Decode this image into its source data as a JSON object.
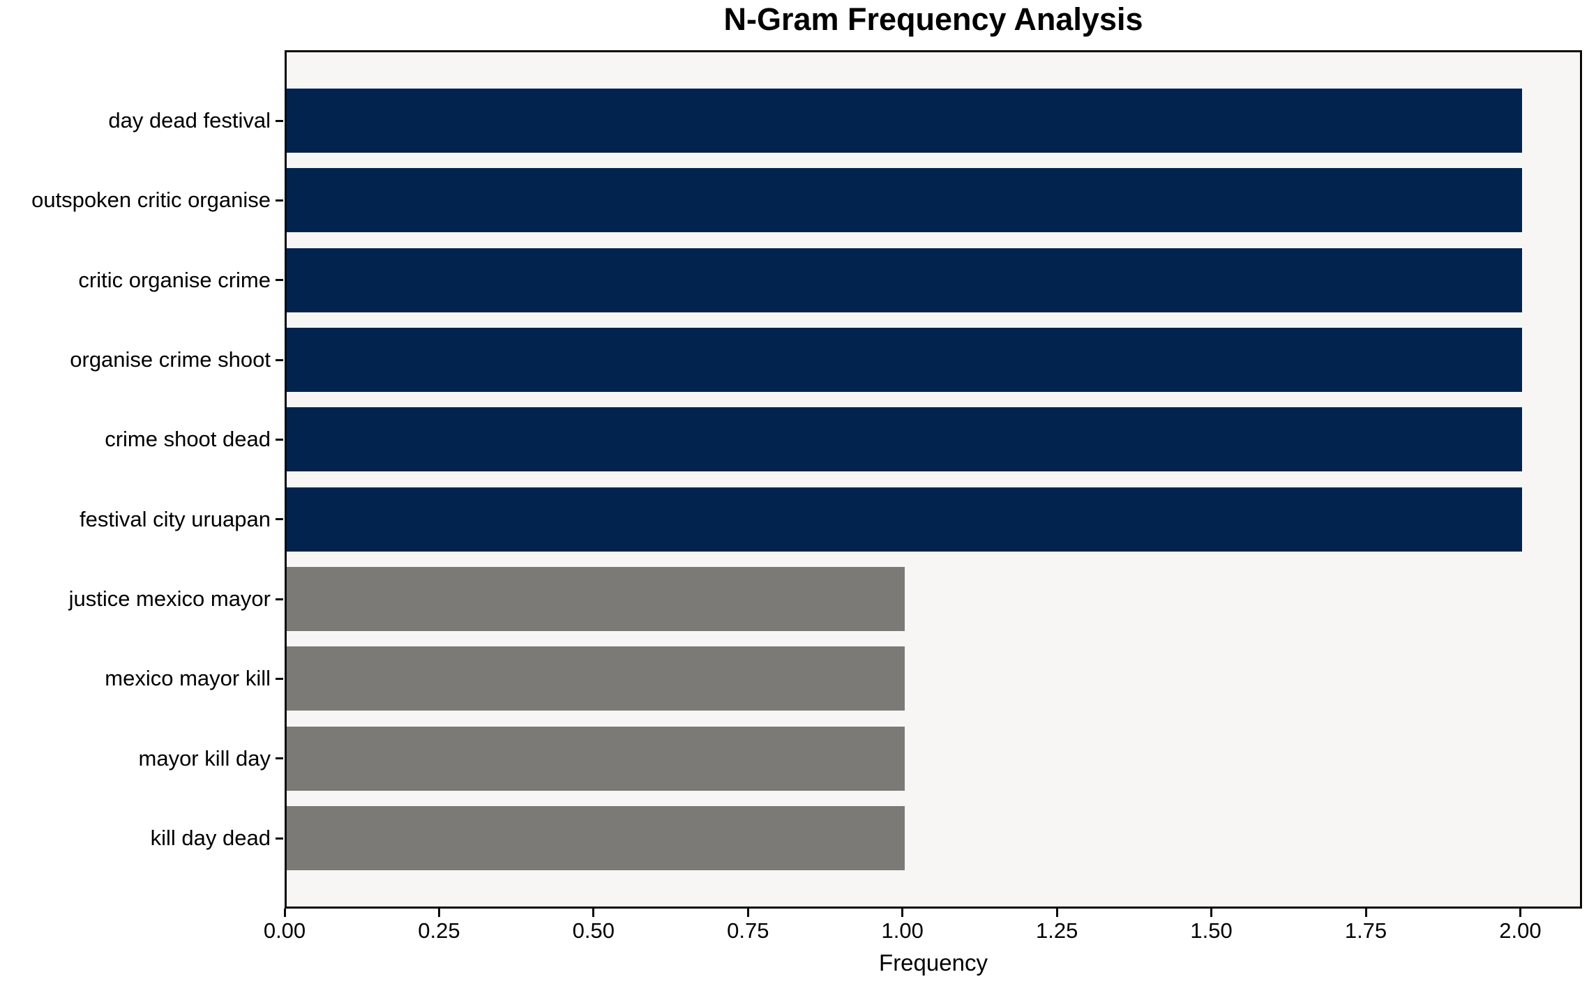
{
  "chart_data": {
    "type": "bar",
    "orientation": "horizontal",
    "title": "N-Gram Frequency Analysis",
    "xlabel": "Frequency",
    "ylabel": "",
    "categories": [
      "day dead festival",
      "outspoken critic organise",
      "critic organise crime",
      "organise crime shoot",
      "crime shoot dead",
      "festival city uruapan",
      "justice mexico mayor",
      "mexico mayor kill",
      "mayor kill day",
      "kill day dead"
    ],
    "values": [
      2,
      2,
      2,
      2,
      2,
      2,
      1,
      1,
      1,
      1
    ],
    "bar_colors": [
      "#02234d",
      "#02234d",
      "#02234d",
      "#02234d",
      "#02234d",
      "#02234d",
      "#7b7a77",
      "#7b7a77",
      "#7b7a77",
      "#7b7a77"
    ],
    "xlim": [
      0,
      2.1
    ],
    "xticks": [
      0,
      0.25,
      0.5,
      0.75,
      1.0,
      1.25,
      1.5,
      1.75,
      2.0
    ],
    "xtick_labels": [
      "0.00",
      "0.25",
      "0.50",
      "0.75",
      "1.00",
      "1.25",
      "1.50",
      "1.75",
      "2.00"
    ],
    "grid": "off",
    "legend": "none",
    "plot_bg_color": "#f7f6f5",
    "figure_bg_color": "#ffffff",
    "spine_color": "#0a0a0a"
  }
}
